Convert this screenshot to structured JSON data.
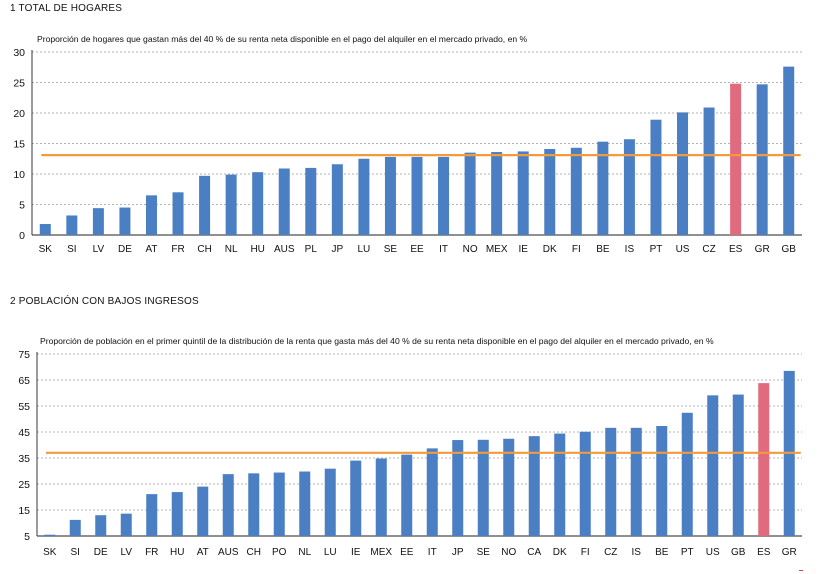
{
  "colors": {
    "bar": "#4a7fc4",
    "highlight": "#e06a7e",
    "reference_line": "#f39a3c",
    "grid": "#9a9a9a"
  },
  "chart_data": [
    {
      "type": "bar",
      "title": "1  TOTAL DE HOGARES",
      "subtitle": "Proporción de hogares que gastan más del 40 % de su renta neta disponible en el pago del alquiler en el mercado privado, en %",
      "categories": [
        "SK",
        "SI",
        "LV",
        "DE",
        "AT",
        "FR",
        "CH",
        "NL",
        "HU",
        "AUS",
        "PL",
        "JP",
        "LU",
        "SE",
        "EE",
        "IT",
        "NO",
        "MEX",
        "IE",
        "DK",
        "FI",
        "BE",
        "IS",
        "PT",
        "US",
        "CZ",
        "ES",
        "GR",
        "GB"
      ],
      "values": [
        1.8,
        3.2,
        4.4,
        4.5,
        6.5,
        7.0,
        9.7,
        9.9,
        10.3,
        10.9,
        11.0,
        11.6,
        12.5,
        12.8,
        12.8,
        12.8,
        13.5,
        13.6,
        13.7,
        14.1,
        14.3,
        15.3,
        15.7,
        18.9,
        20.1,
        20.9,
        24.8,
        24.7,
        27.6
      ],
      "highlight": [
        "ES"
      ],
      "reference_value": 13.1,
      "ylim": [
        0,
        30
      ],
      "yticks": [
        0,
        5,
        10,
        15,
        20,
        25,
        30
      ],
      "grid": true
    },
    {
      "type": "bar",
      "title": "2  POBLACIÓN CON BAJOS INGRESOS",
      "subtitle": "Proporción de población en el primer quintil de la distribución de la renta que gasta más del 40 % de su renta neta disponible en el pago del alquiler en el mercado privado, en %",
      "categories": [
        "SK",
        "SI",
        "DE",
        "LV",
        "FR",
        "HU",
        "AT",
        "AUS",
        "CH",
        "PO",
        "NL",
        "LU",
        "IE",
        "MEX",
        "EE",
        "IT",
        "JP",
        "SE",
        "NO",
        "CA",
        "DK",
        "FI",
        "CZ",
        "IS",
        "BE",
        "PT",
        "US",
        "GB",
        "ES",
        "GR"
      ],
      "values": [
        5.5,
        11.2,
        13.0,
        13.6,
        21.1,
        21.9,
        24.0,
        28.8,
        29.1,
        29.4,
        29.8,
        30.9,
        34.0,
        34.8,
        36.3,
        38.7,
        41.9,
        42.0,
        42.4,
        43.4,
        44.4,
        45.1,
        46.6,
        46.6,
        47.3,
        52.4,
        59.1,
        59.4,
        63.8,
        68.5
      ],
      "highlight": [
        "ES"
      ],
      "reference_value": 37.0,
      "ylim": [
        5,
        75
      ],
      "yticks": [
        5,
        15,
        25,
        35,
        45,
        55,
        65,
        75
      ],
      "grid": true
    }
  ]
}
